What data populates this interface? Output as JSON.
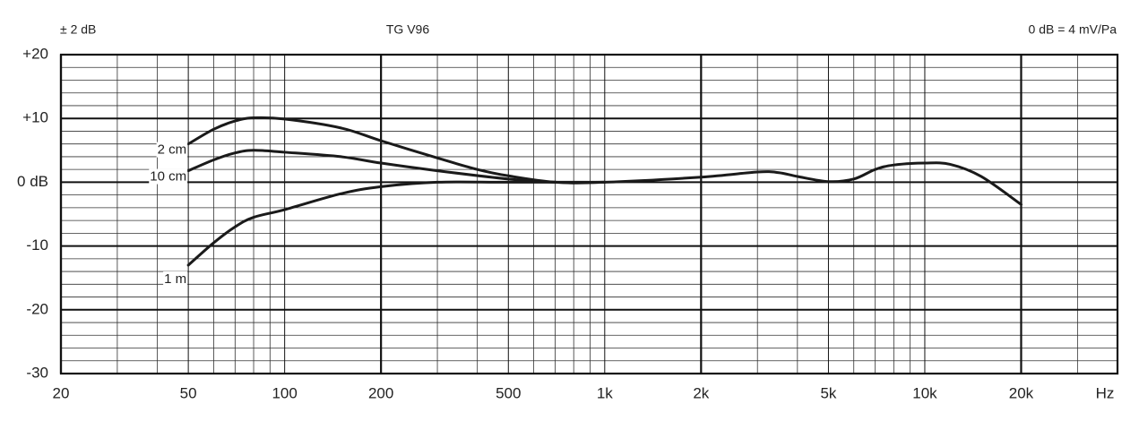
{
  "chart_data": {
    "type": "line",
    "title": "TG V96",
    "y_note": "± 2 dB",
    "sensitivity_note": "0 dB = 4 mV/Pa",
    "x_unit": "Hz",
    "log_x": true,
    "grid": true,
    "color": "#1a1a1a",
    "xlim": [
      20,
      40000
    ],
    "xticks": [
      20,
      50,
      100,
      200,
      500,
      {
        "value": 1000,
        "label": "1k"
      },
      {
        "value": 2000,
        "label": "2k"
      },
      {
        "value": 5000,
        "label": "5k"
      },
      {
        "value": 10000,
        "label": "10k"
      },
      {
        "value": 20000,
        "label": "20k"
      }
    ],
    "x_minor_ticks": [
      30,
      40,
      60,
      70,
      80,
      90,
      300,
      400,
      600,
      700,
      800,
      900,
      3000,
      4000,
      6000,
      7000,
      8000,
      9000,
      30000
    ],
    "ylim": [
      -30,
      20
    ],
    "yticks": [
      {
        "value": 20,
        "label": "+20"
      },
      {
        "value": 10,
        "label": "+10"
      },
      {
        "value": 0,
        "label": "0 dB"
      },
      -10,
      -20,
      -30
    ],
    "y_minor_ticks": [
      18,
      16,
      14,
      12,
      8,
      6,
      4,
      2,
      -2,
      -4,
      -6,
      -8,
      -12,
      -14,
      -16,
      -18,
      -22,
      -24,
      -26,
      -28
    ],
    "series": [
      {
        "name": "2 cm",
        "x": [
          50,
          60,
          70,
          80,
          100,
          150,
          200,
          300,
          400,
          500,
          700,
          1000,
          2000,
          3000,
          3500,
          4000,
          5000,
          6000,
          7000,
          8000,
          10000,
          12000,
          15000,
          20000
        ],
        "values": [
          6,
          8.3,
          9.6,
          10.1,
          9.9,
          8.5,
          6.5,
          3.8,
          2,
          1,
          0,
          0,
          0.8,
          1.6,
          1.5,
          0.9,
          0.1,
          0.5,
          2,
          2.7,
          3,
          2.8,
          0.9,
          -3.5
        ]
      },
      {
        "name": "10 cm",
        "x": [
          50,
          60,
          70,
          80,
          100,
          150,
          200,
          300,
          500,
          700,
          1000
        ],
        "values": [
          1.8,
          3.5,
          4.6,
          5,
          4.7,
          4,
          3,
          1.8,
          0.5,
          0,
          0
        ]
      },
      {
        "name": "1 m",
        "x": [
          50,
          60,
          70,
          80,
          100,
          150,
          200,
          300,
          500,
          1000
        ],
        "values": [
          -13,
          -9.5,
          -7,
          -5.5,
          -4.3,
          -1.8,
          -0.7,
          0,
          0,
          0
        ]
      }
    ]
  }
}
